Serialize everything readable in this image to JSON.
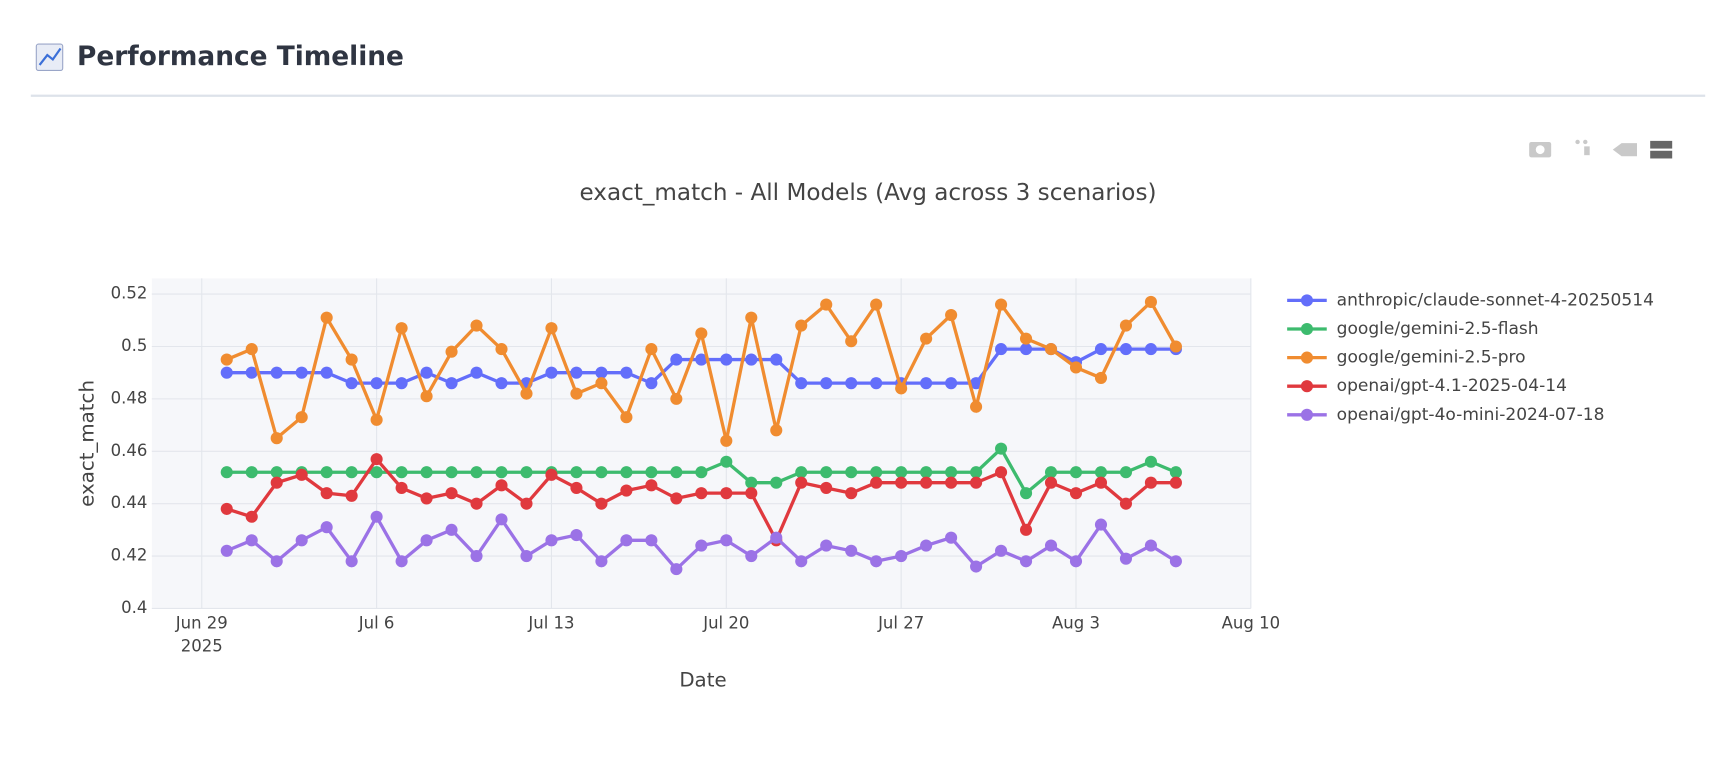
{
  "header": {
    "title": "Performance Timeline"
  },
  "chart_data": {
    "type": "line",
    "title": "exact_match - All Models (Avg across 3 scenarios)",
    "x_label": "Date",
    "y_label": "exact_match",
    "x_year_label": "2025",
    "grid": true,
    "legend": "right",
    "xlim": [
      "2025-06-27",
      "2025-08-10"
    ],
    "xticks": [
      {
        "value": "2025-06-29",
        "label": "Jun 29"
      },
      {
        "value": "2025-07-06",
        "label": "Jul 6"
      },
      {
        "value": "2025-07-13",
        "label": "Jul 13"
      },
      {
        "value": "2025-07-20",
        "label": "Jul 20"
      },
      {
        "value": "2025-07-27",
        "label": "Jul 27"
      },
      {
        "value": "2025-08-03",
        "label": "Aug 3"
      },
      {
        "value": "2025-08-10",
        "label": "Aug 10"
      }
    ],
    "ylim": [
      0.4,
      0.526
    ],
    "yticks": [
      0.4,
      0.42,
      0.44,
      0.46,
      0.48,
      0.5,
      0.52
    ],
    "x": [
      "2025-06-30",
      "2025-07-01",
      "2025-07-02",
      "2025-07-03",
      "2025-07-04",
      "2025-07-05",
      "2025-07-06",
      "2025-07-07",
      "2025-07-08",
      "2025-07-09",
      "2025-07-10",
      "2025-07-11",
      "2025-07-12",
      "2025-07-13",
      "2025-07-14",
      "2025-07-15",
      "2025-07-16",
      "2025-07-17",
      "2025-07-18",
      "2025-07-19",
      "2025-07-20",
      "2025-07-21",
      "2025-07-22",
      "2025-07-23",
      "2025-07-24",
      "2025-07-25",
      "2025-07-26",
      "2025-07-27",
      "2025-07-28",
      "2025-07-29",
      "2025-07-30",
      "2025-07-31",
      "2025-08-01",
      "2025-08-02",
      "2025-08-03",
      "2025-08-04",
      "2025-08-05",
      "2025-08-06",
      "2025-08-07"
    ],
    "series": [
      {
        "name": "anthropic/claude-sonnet-4-20250514",
        "color": "#636efa",
        "values": [
          0.49,
          0.49,
          0.49,
          0.49,
          0.49,
          0.486,
          0.486,
          0.486,
          0.49,
          0.486,
          0.49,
          0.486,
          0.486,
          0.49,
          0.49,
          0.49,
          0.49,
          0.486,
          0.495,
          0.495,
          0.495,
          0.495,
          0.495,
          0.486,
          0.486,
          0.486,
          0.486,
          0.486,
          0.486,
          0.486,
          0.486,
          0.499,
          0.499,
          0.499,
          0.494,
          0.499,
          0.499,
          0.499,
          0.499
        ]
      },
      {
        "name": "google/gemini-2.5-flash",
        "color": "#3dbb6e",
        "values": [
          0.452,
          0.452,
          0.452,
          0.452,
          0.452,
          0.452,
          0.452,
          0.452,
          0.452,
          0.452,
          0.452,
          0.452,
          0.452,
          0.452,
          0.452,
          0.452,
          0.452,
          0.452,
          0.452,
          0.452,
          0.456,
          0.448,
          0.448,
          0.452,
          0.452,
          0.452,
          0.452,
          0.452,
          0.452,
          0.452,
          0.452,
          0.461,
          0.444,
          0.452,
          0.452,
          0.452,
          0.452,
          0.456,
          0.452
        ]
      },
      {
        "name": "google/gemini-2.5-pro",
        "color": "#f08c30",
        "values": [
          0.495,
          0.499,
          0.465,
          0.473,
          0.511,
          0.495,
          0.472,
          0.507,
          0.481,
          0.498,
          0.508,
          0.499,
          0.482,
          0.507,
          0.482,
          0.486,
          0.473,
          0.499,
          0.48,
          0.505,
          0.464,
          0.511,
          0.468,
          0.508,
          0.516,
          0.502,
          0.516,
          0.484,
          0.503,
          0.512,
          0.477,
          0.516,
          0.503,
          0.499,
          0.492,
          0.488,
          0.508,
          0.517,
          0.5
        ]
      },
      {
        "name": "openai/gpt-4.1-2025-04-14",
        "color": "#e0393e",
        "values": [
          0.438,
          0.435,
          0.448,
          0.451,
          0.444,
          0.443,
          0.457,
          0.446,
          0.442,
          0.444,
          0.44,
          0.447,
          0.44,
          0.451,
          0.446,
          0.44,
          0.445,
          0.447,
          0.442,
          0.444,
          0.444,
          0.444,
          0.426,
          0.448,
          0.446,
          0.444,
          0.448,
          0.448,
          0.448,
          0.448,
          0.448,
          0.452,
          0.43,
          0.448,
          0.444,
          0.448,
          0.44,
          0.448,
          0.448
        ]
      },
      {
        "name": "openai/gpt-4o-mini-2024-07-18",
        "color": "#9b72e6",
        "values": [
          0.422,
          0.426,
          0.418,
          0.426,
          0.431,
          0.418,
          0.435,
          0.418,
          0.426,
          0.43,
          0.42,
          0.434,
          0.42,
          0.426,
          0.428,
          0.418,
          0.426,
          0.426,
          0.415,
          0.424,
          0.426,
          0.42,
          0.427,
          0.418,
          0.424,
          0.422,
          0.418,
          0.42,
          0.424,
          0.427,
          0.416,
          0.422,
          0.418,
          0.424,
          0.418,
          0.432,
          0.419,
          0.424,
          0.418
        ]
      }
    ]
  }
}
